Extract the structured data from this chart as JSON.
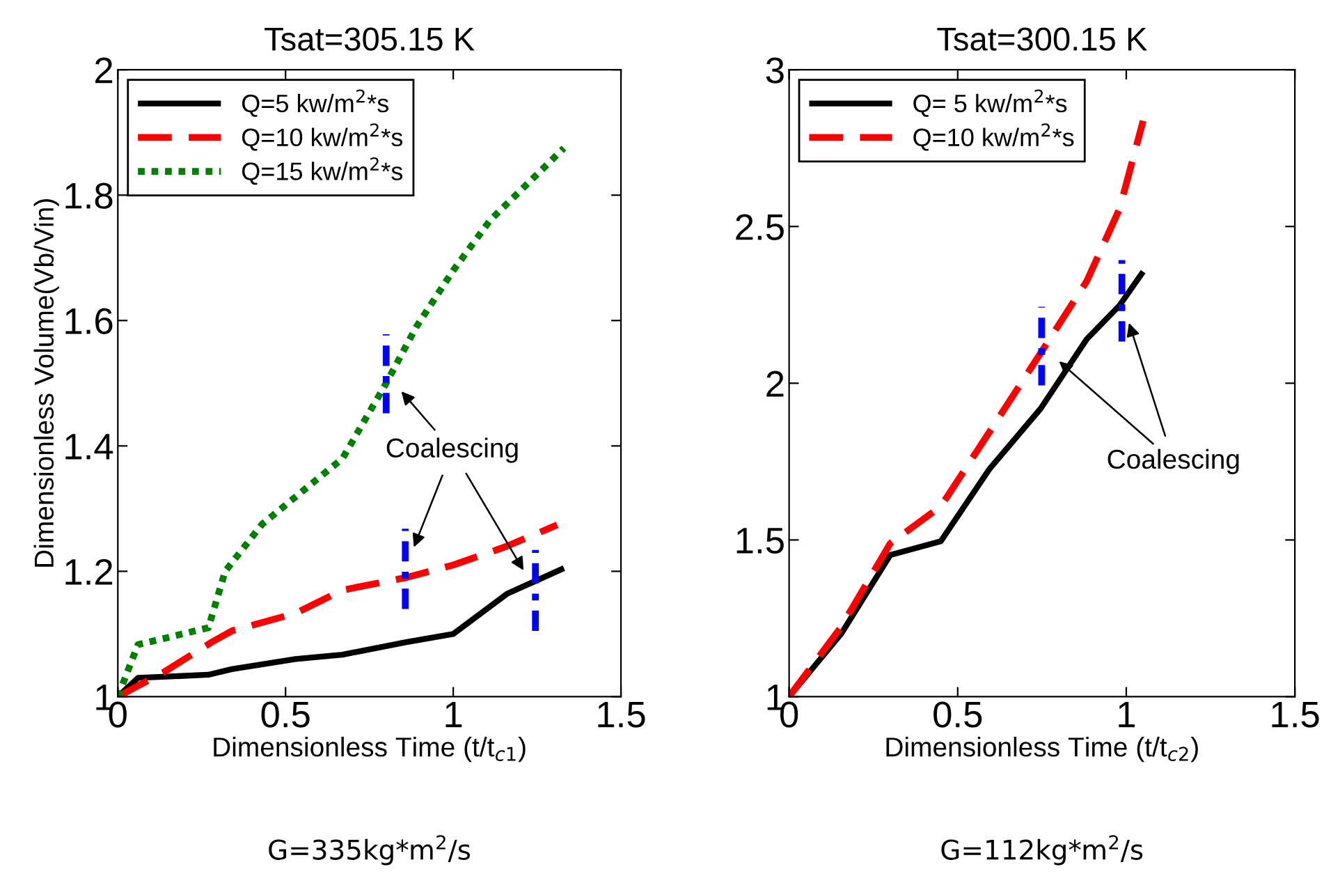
{
  "chart_data": [
    {
      "type": "line",
      "title": "Tsat=305.15 K",
      "xlabel": "Dimensionless Time (t/t$_{c1}$)",
      "ylabel": "Dimensionless Volume(Vb/Vin)",
      "xlim": [
        0,
        1.5
      ],
      "xticks": [
        0,
        0.5,
        1,
        1.5
      ],
      "ylim": [
        1,
        2
      ],
      "yticks": [
        1,
        1.2,
        1.4,
        1.6,
        1.8,
        2
      ],
      "grid": false,
      "legend": "top left",
      "marker": "none",
      "series": [
        {
          "name": "Q=5 kw/m$^{2}$*s",
          "color": "#000000",
          "line_style": "solid",
          "x": [
            0,
            0.06,
            0.27,
            0.34,
            0.53,
            0.67,
            0.86,
            1.0,
            1.16,
            1.33
          ],
          "values": [
            1.0,
            1.03,
            1.035,
            1.044,
            1.06,
            1.067,
            1.087,
            1.1,
            1.164,
            1.205
          ]
        },
        {
          "name": "Q=10 kw/m$^{2}$*s",
          "color": "#ff0000",
          "line_style": "dashed",
          "x": [
            0,
            0.14,
            0.28,
            0.34,
            0.53,
            0.67,
            0.86,
            1.0,
            1.16,
            1.31
          ],
          "values": [
            1.0,
            1.04,
            1.087,
            1.105,
            1.133,
            1.17,
            1.19,
            1.21,
            1.24,
            1.274
          ]
        },
        {
          "name": "Q=15 kw/m$^{2}$*s",
          "color": "#008000",
          "line_style": "dotted",
          "x": [
            0,
            0.06,
            0.27,
            0.32,
            0.43,
            0.67,
            0.8,
            0.89,
            1.0,
            1.11,
            1.33
          ],
          "values": [
            1.0,
            1.083,
            1.11,
            1.2,
            1.275,
            1.38,
            1.5,
            1.59,
            1.68,
            1.76,
            1.875
          ]
        },
        {
          "color": "#0000ff",
          "line_style": "dashdot",
          "x": [
            0.8,
            0.8
          ],
          "values": [
            1.452,
            1.578
          ]
        },
        {
          "color": "#0000ff",
          "line_style": "dashdot",
          "x": [
            0.857,
            0.857
          ],
          "values": [
            1.14,
            1.268
          ]
        },
        {
          "color": "#0000ff",
          "line_style": "dashdot",
          "x": [
            1.245,
            1.245
          ],
          "values": [
            1.105,
            1.234
          ]
        }
      ],
      "annotations": [
        "Coalescing",
        "G=335kg*m$^{2}$/s"
      ]
    },
    {
      "type": "line",
      "title": "Tsat=300.15 K",
      "xlabel": "Dimensionless Time (t/t$_{c2}$)",
      "xlim": [
        0,
        1.5
      ],
      "xticks": [
        0,
        0.5,
        1,
        1.5
      ],
      "ylim": [
        1,
        3
      ],
      "yticks": [
        1,
        1.5,
        2,
        2.5,
        3
      ],
      "grid": false,
      "legend": "top left",
      "marker": "none",
      "series": [
        {
          "name": "Q= 5 kw/m$^{2}$*s",
          "color": "#000000",
          "line_style": "solid",
          "x": [
            0,
            0.154,
            0.3,
            0.45,
            0.594,
            0.746,
            0.883,
            0.98,
            1.05
          ],
          "values": [
            1.0,
            1.2,
            1.452,
            1.496,
            1.726,
            1.919,
            2.141,
            2.248,
            2.356
          ]
        },
        {
          "name": "Q=10 kw/m$^{2}$*s",
          "color": "#ff0000",
          "line_style": "dashed",
          "x": [
            0,
            0.154,
            0.3,
            0.45,
            0.594,
            0.746,
            0.883,
            0.98,
            1.05
          ],
          "values": [
            1.0,
            1.222,
            1.489,
            1.607,
            1.844,
            2.096,
            2.326,
            2.556,
            2.837
          ]
        },
        {
          "color": "#0000ff",
          "line_style": "dashdot",
          "x": [
            0.749,
            0.749
          ],
          "values": [
            1.993,
            2.244
          ]
        },
        {
          "color": "#0000ff",
          "line_style": "dashdot",
          "x": [
            0.987,
            0.987
          ],
          "values": [
            2.133,
            2.393
          ]
        }
      ],
      "annotations": [
        "Coalescing",
        "G=112kg*m$^{2}$/s"
      ]
    }
  ]
}
